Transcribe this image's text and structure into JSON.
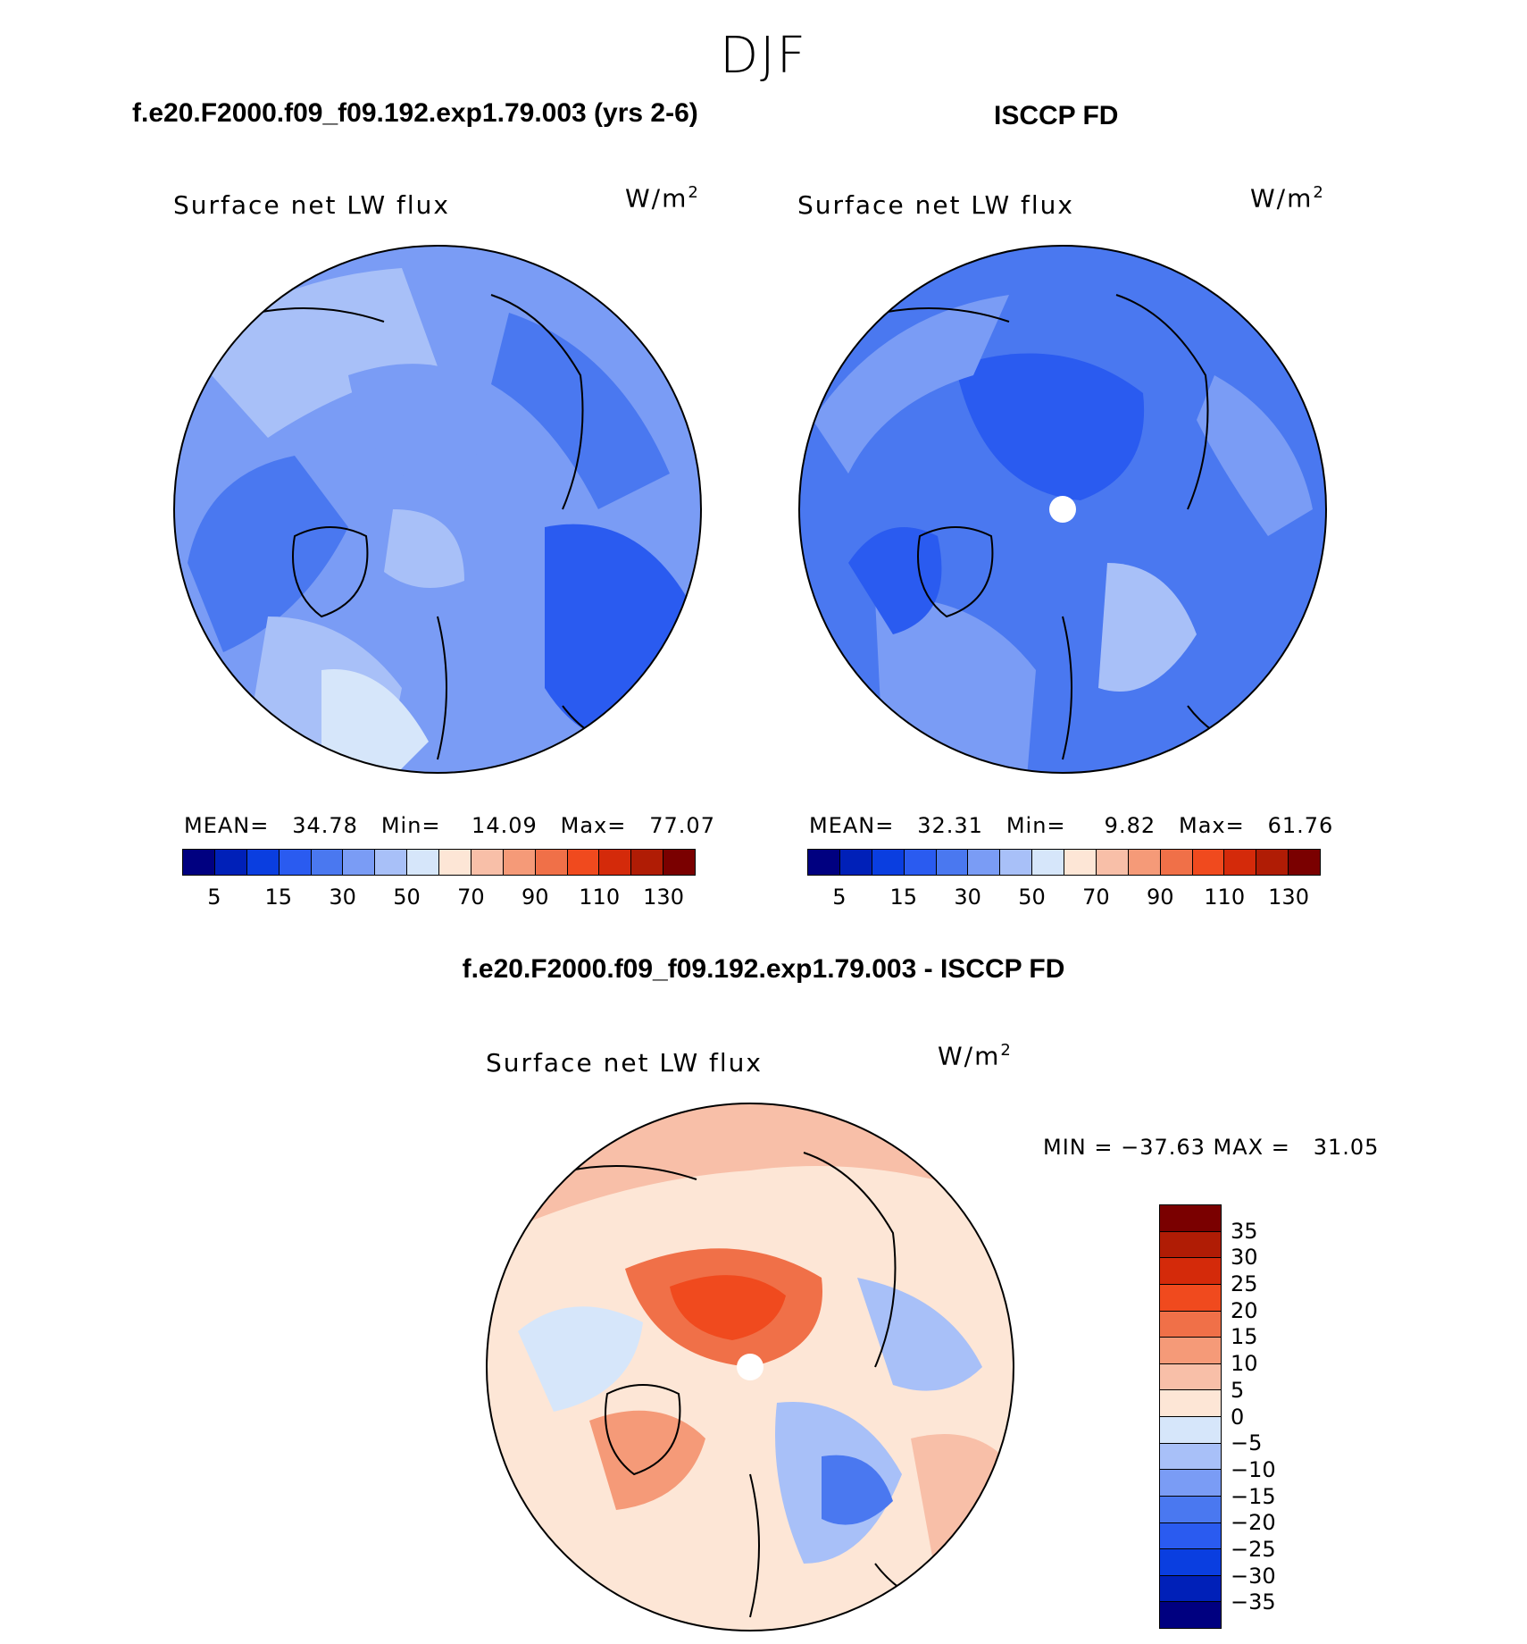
{
  "season": "DJF",
  "palettes": {
    "abs": [
      "#000080",
      "#0020b8",
      "#0a3ee0",
      "#2a5bf0",
      "#4a78f0",
      "#7a9cf5",
      "#a8c0f8",
      "#d6e6fa",
      "#fde6d6",
      "#f8bfa8",
      "#f59a78",
      "#f07048",
      "#f04a1e",
      "#d42a0a",
      "#b01c05",
      "#7a0000"
    ],
    "diff": [
      "#000080",
      "#0020b8",
      "#0a3ee0",
      "#2a5bf0",
      "#4a78f0",
      "#7a9cf5",
      "#a8c0f8",
      "#d6e6fa",
      "#fde6d6",
      "#f8bfa8",
      "#f59a78",
      "#f07048",
      "#f04a1e",
      "#d42a0a",
      "#b01c05",
      "#7a0000"
    ]
  },
  "panel_left": {
    "header": "f.e20.F2000.f09_f09.192.exp1.79.003 (yrs 2-6)",
    "variable": "Surface net LW flux",
    "unit_base": "W/m",
    "unit_exp": "2",
    "stats": "MEAN=   34.78   Min=    14.09   Max=   77.07",
    "ticks": [
      "5",
      "15",
      "30",
      "50",
      "70",
      "90",
      "110",
      "130"
    ]
  },
  "panel_right": {
    "header": "ISCCP FD",
    "variable": "Surface net LW flux",
    "unit_base": "W/m",
    "unit_exp": "2",
    "stats": "MEAN=   32.31   Min=     9.82   Max=   61.76",
    "ticks": [
      "5",
      "15",
      "30",
      "50",
      "70",
      "90",
      "110",
      "130"
    ]
  },
  "panel_diff": {
    "header": "f.e20.F2000.f09_f09.192.exp1.79.003 - ISCCP FD",
    "variable": "Surface net LW flux",
    "unit_base": "W/m",
    "unit_exp": "2",
    "stats": "MIN = −37.63 MAX =   31.05",
    "ticks": [
      "35",
      "30",
      "25",
      "20",
      "15",
      "10",
      "5",
      "0",
      "−5",
      "−10",
      "−15",
      "−20",
      "−25",
      "−30",
      "−35"
    ]
  }
}
